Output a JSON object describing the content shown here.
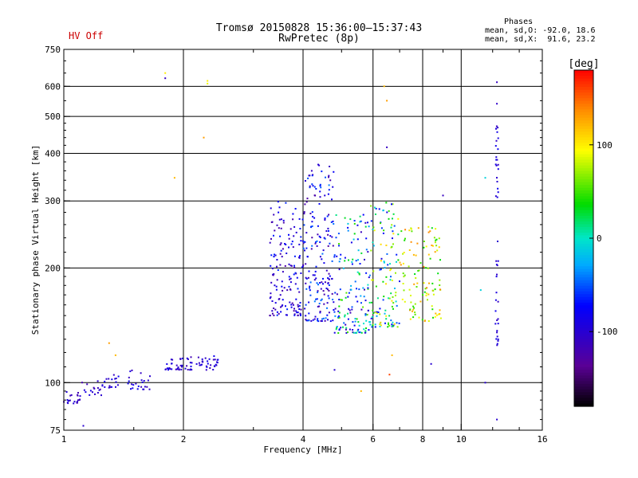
{
  "header": {
    "title_line1": "Tromsø 20150828 15:36:00–15:37:43",
    "title_line2": "RwPretec (8p)",
    "status_text": "HV Off",
    "status_color": "#cc0000",
    "stats_title": "Phases",
    "stats_o": "mean, sd,O: -92.0, 18.6",
    "stats_x": "mean, sd,X:  91.6, 23.2"
  },
  "chart_data": {
    "type": "scatter",
    "xlabel": "Frequency [MHz]",
    "ylabel": "Stationary phase Virtual Height [km]",
    "xscale": "log",
    "yscale": "log",
    "xlim": [
      1,
      16
    ],
    "ylim": [
      75,
      750
    ],
    "x_ticks": [
      1,
      2,
      4,
      6,
      8,
      10,
      16
    ],
    "y_ticks": [
      75,
      100,
      200,
      300,
      400,
      500,
      600,
      750
    ],
    "x_grid": [
      2,
      4,
      6,
      8,
      10
    ],
    "y_grid": [
      100,
      200,
      300,
      400,
      500,
      600
    ],
    "grid": true,
    "colorbar": {
      "label": "[deg]",
      "min": -180,
      "max": 180,
      "ticks": [
        100,
        0,
        -100
      ]
    },
    "clusters": [
      {
        "f": [
          1.0,
          1.1
        ],
        "h": [
          88,
          96
        ],
        "phase": [
          -125,
          -85
        ],
        "n": 22
      },
      {
        "f": [
          1.1,
          1.25
        ],
        "h": [
          92,
          101
        ],
        "phase": [
          -125,
          -80
        ],
        "n": 16
      },
      {
        "f": [
          1.25,
          1.4
        ],
        "h": [
          97,
          107
        ],
        "phase": [
          -120,
          -80
        ],
        "n": 18
      },
      {
        "f": [
          1.4,
          1.65
        ],
        "h": [
          96,
          108
        ],
        "phase": [
          -120,
          -80
        ],
        "n": 24
      },
      {
        "f": [
          1.8,
          2.45
        ],
        "h": [
          108,
          118
        ],
        "phase": [
          -120,
          -80
        ],
        "n": 70
      },
      {
        "f": [
          3.3,
          4.0
        ],
        "h": [
          150,
          300
        ],
        "phase": [
          -130,
          -60
        ],
        "n": 150
      },
      {
        "f": [
          4.0,
          4.8
        ],
        "h": [
          145,
          380
        ],
        "phase": [
          -130,
          -40
        ],
        "n": 190
      },
      {
        "f": [
          4.8,
          5.9
        ],
        "h": [
          135,
          280
        ],
        "phase": [
          -120,
          60
        ],
        "n": 150
      },
      {
        "f": [
          5.9,
          7.0
        ],
        "h": [
          140,
          300
        ],
        "phase": [
          -90,
          110
        ],
        "n": 130
      },
      {
        "f": [
          7.0,
          8.9
        ],
        "h": [
          145,
          260
        ],
        "phase": [
          30,
          140
        ],
        "n": 110
      },
      {
        "f": [
          12.2,
          12.4
        ],
        "h": [
          125,
          500
        ],
        "phase": [
          -110,
          -80
        ],
        "n": 45
      }
    ],
    "points": [
      {
        "f": 1.8,
        "h": 630,
        "phase": -110
      },
      {
        "f": 1.8,
        "h": 650,
        "phase": 100
      },
      {
        "f": 2.3,
        "h": 610,
        "phase": 90
      },
      {
        "f": 2.3,
        "h": 620,
        "phase": 100
      },
      {
        "f": 2.25,
        "h": 440,
        "phase": 130
      },
      {
        "f": 1.9,
        "h": 345,
        "phase": 120
      },
      {
        "f": 1.3,
        "h": 127,
        "phase": 130
      },
      {
        "f": 1.35,
        "h": 118,
        "phase": 120
      },
      {
        "f": 1.12,
        "h": 77,
        "phase": -100
      },
      {
        "f": 6.5,
        "h": 550,
        "phase": 130
      },
      {
        "f": 6.4,
        "h": 600,
        "phase": 120
      },
      {
        "f": 6.5,
        "h": 415,
        "phase": -110
      },
      {
        "f": 11.2,
        "h": 175,
        "phase": -10
      },
      {
        "f": 11.5,
        "h": 345,
        "phase": -10
      },
      {
        "f": 11.5,
        "h": 100,
        "phase": -100
      },
      {
        "f": 12.3,
        "h": 80,
        "phase": -100
      },
      {
        "f": 12.3,
        "h": 615,
        "phase": -110
      },
      {
        "f": 12.3,
        "h": 540,
        "phase": -105
      },
      {
        "f": 5.6,
        "h": 95,
        "phase": 120
      },
      {
        "f": 6.6,
        "h": 105,
        "phase": 160
      },
      {
        "f": 4.8,
        "h": 108,
        "phase": -100
      },
      {
        "f": 8.4,
        "h": 112,
        "phase": -100
      },
      {
        "f": 9.0,
        "h": 310,
        "phase": -110
      },
      {
        "f": 6.7,
        "h": 118,
        "phase": 120
      }
    ]
  }
}
